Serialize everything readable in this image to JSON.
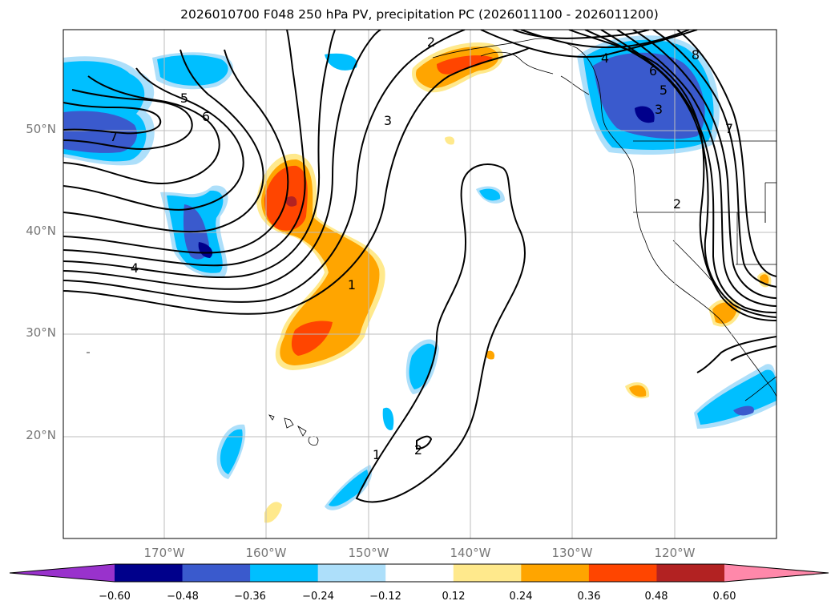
{
  "title": "2026010700 F048 250 hPa PV, precipitation PC (2026011100 - 2026011200)",
  "map": {
    "latitude_labels": [
      "50°N",
      "40°N",
      "30°N",
      "20°N"
    ],
    "longitude_labels": [
      "170°W",
      "160°W",
      "150°W",
      "140°W",
      "130°W",
      "120°W"
    ],
    "contour_labels": [
      "5",
      "6",
      "7",
      "4",
      "3",
      "2",
      "1",
      "1",
      "2",
      "4",
      "5",
      "6",
      "7",
      "8",
      "3",
      "2"
    ]
  },
  "colorbar": {
    "tick_labels": [
      "−0.60",
      "−0.48",
      "−0.36",
      "−0.24",
      "−0.12",
      "0.12",
      "0.24",
      "0.36",
      "0.48",
      "0.60"
    ],
    "colors": [
      "#9932CC",
      "#00008B",
      "#3A5ACD",
      "#00BFFF",
      "#ADDFFA",
      "#FFFFFF",
      "#FFE98C",
      "#FFA500",
      "#FF4500",
      "#B22222",
      "#FF88AA"
    ]
  }
}
